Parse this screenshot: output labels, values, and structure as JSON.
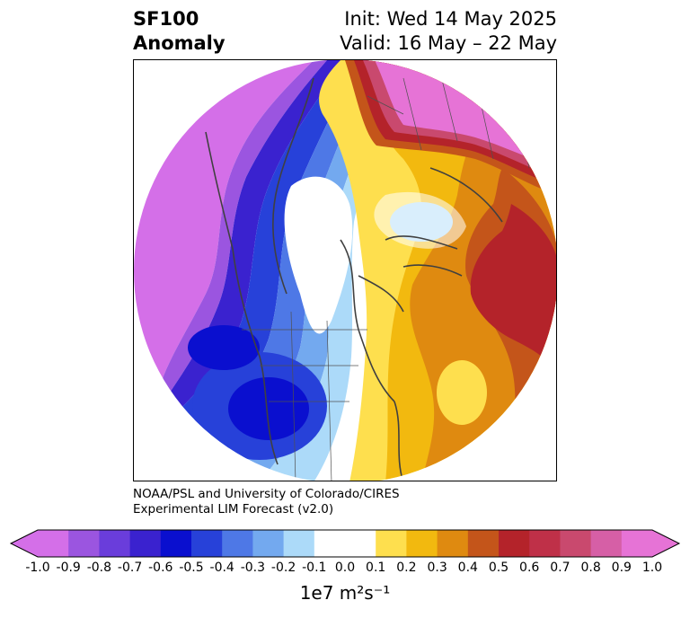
{
  "header": {
    "title_line1": "SF100",
    "title_line2": "Anomaly",
    "init_text": "Init: Wed 14 May 2025",
    "valid_text": "Valid: 16 May – 22 May"
  },
  "credit": {
    "line1": "NOAA/PSL and University of Colorado/CIRES",
    "line2": "Experimental LIM Forecast (v2.0)"
  },
  "colorbar": {
    "unit_label": "1e7 m²s⁻¹",
    "tick_labels": [
      "-1.0",
      "-0.9",
      "-0.8",
      "-0.7",
      "-0.6",
      "-0.5",
      "-0.4",
      "-0.3",
      "-0.2",
      "-0.1",
      "0.0",
      "0.1",
      "0.2",
      "0.3",
      "0.4",
      "0.5",
      "0.6",
      "0.7",
      "0.8",
      "0.9",
      "1.0"
    ],
    "colors": [
      "#d46fe8",
      "#9b55e0",
      "#6a3ddb",
      "#3a22cf",
      "#0a0fcf",
      "#2741d9",
      "#4e78e6",
      "#73a9ef",
      "#acdaf9",
      "#ffffff",
      "#ffffff",
      "#fedf4e",
      "#f2b90f",
      "#df8a10",
      "#c4551a",
      "#b4232a",
      "#bf3048",
      "#c9496e",
      "#d65fa6",
      "#e673d6"
    ],
    "min": -1.0,
    "max": 1.0,
    "extend": "both"
  },
  "map": {
    "projection": "north-polar-stereographic",
    "variable": "SF100 Anomaly"
  }
}
